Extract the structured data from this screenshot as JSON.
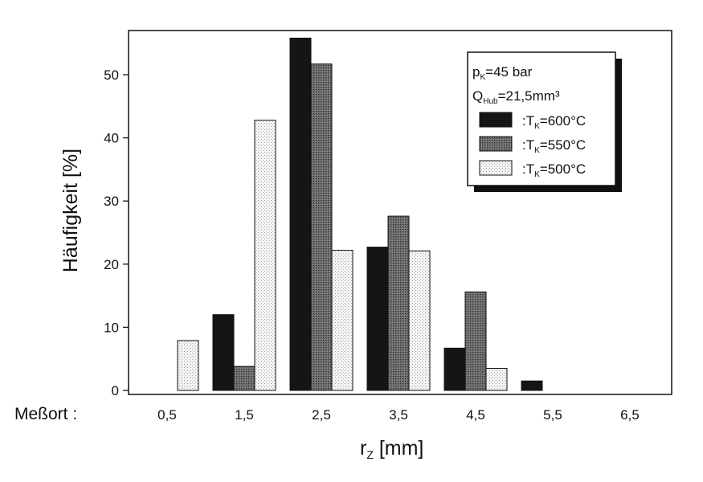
{
  "chart_data": {
    "type": "bar",
    "title": "",
    "xlabel_main": "r",
    "xlabel_sub": "Z",
    "xlabel_unit": " [mm]",
    "ylabel": "Häufigkeit [%]",
    "x_prefix_label": "Meßort :",
    "categories": [
      "0,5",
      "1,5",
      "2,5",
      "3,5",
      "4,5",
      "5,5",
      "6,5"
    ],
    "ylim": [
      0,
      57
    ],
    "yticks": [
      0,
      10,
      20,
      30,
      40,
      50
    ],
    "grid": false,
    "legend_placement": "top-right",
    "legend_header": [
      {
        "main": "p",
        "sub": "K",
        "rest": "=45 bar"
      },
      {
        "main": "Q",
        "sub": "Hub",
        "rest": "=21,5mm³"
      }
    ],
    "series": [
      {
        "legend_prefix": ":T",
        "legend_sub": "K",
        "legend_rest": "=600°C",
        "fill": "#151515",
        "values": [
          0,
          12,
          55.8,
          22.7,
          6.7,
          1.5,
          0
        ]
      },
      {
        "legend_prefix": ":T",
        "legend_sub": "K",
        "legend_rest": "=550°C",
        "fill": "#555555",
        "values": [
          0,
          3.8,
          51.7,
          27.6,
          15.6,
          0,
          0
        ]
      },
      {
        "legend_prefix": ":T",
        "legend_sub": "K",
        "legend_rest": "=500°C",
        "fill": "#ececec",
        "values": [
          7.9,
          42.8,
          22.2,
          22.1,
          3.5,
          0,
          0
        ]
      }
    ]
  }
}
